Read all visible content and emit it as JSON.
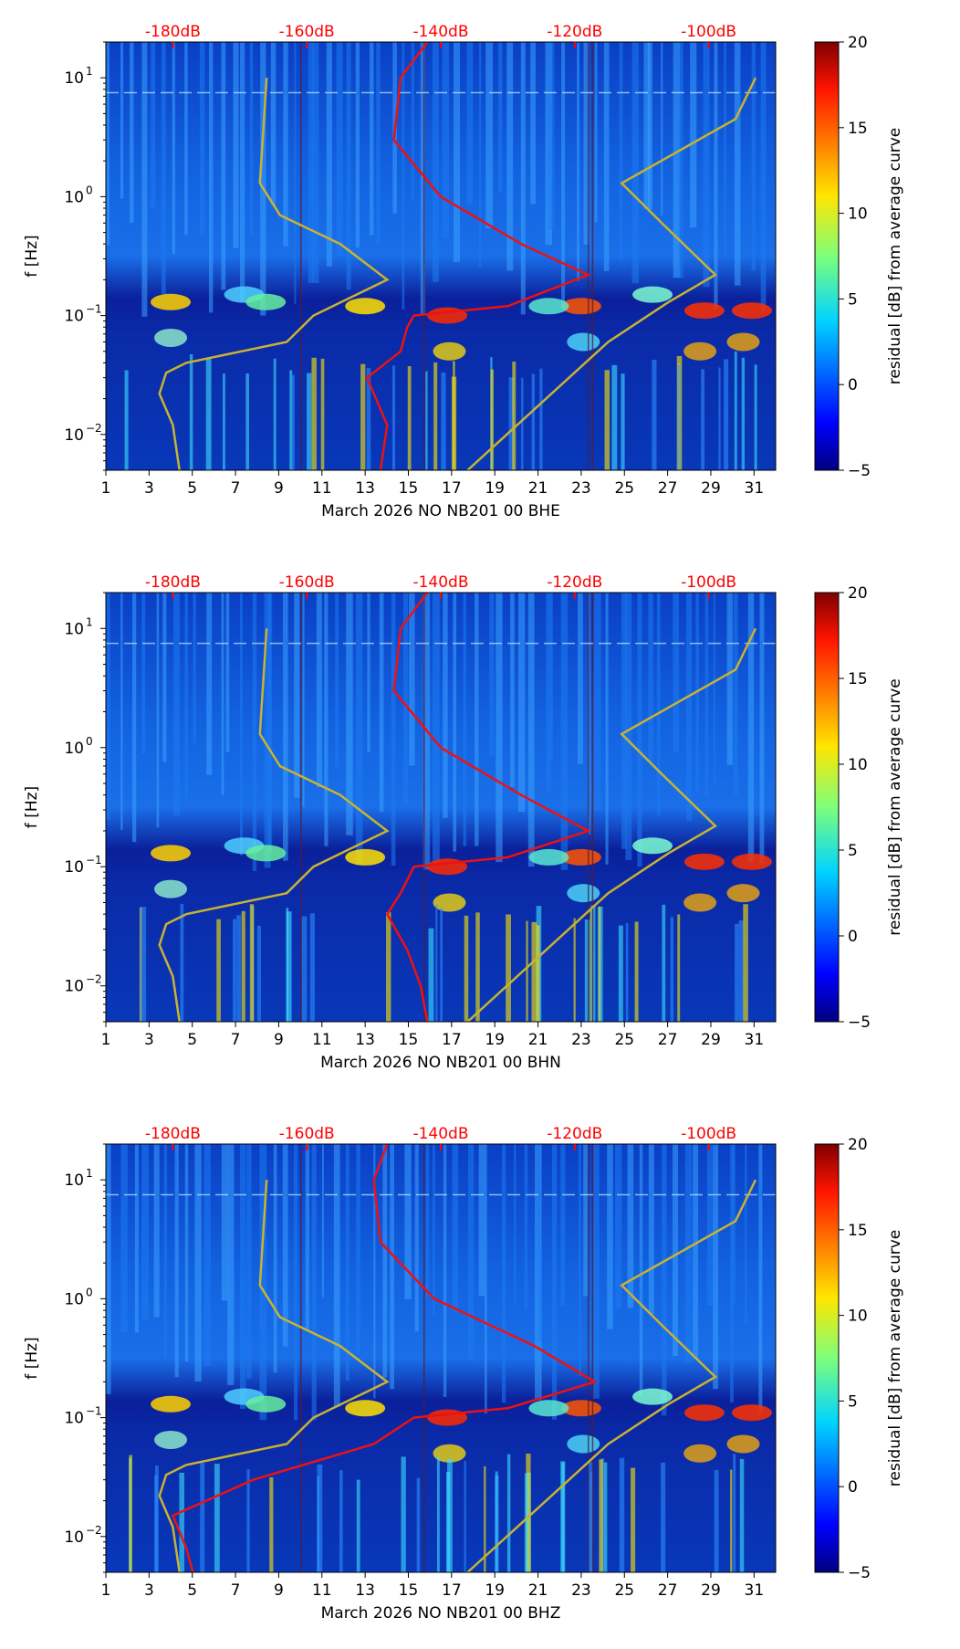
{
  "chart_data": [
    {
      "type": "heatmap",
      "xlabel": "March 2026 NO NB201 00 BHE",
      "ylabel": "f [Hz]",
      "x_ticks": [
        "1",
        "3",
        "5",
        "7",
        "9",
        "11",
        "13",
        "15",
        "17",
        "19",
        "21",
        "23",
        "25",
        "27",
        "29",
        "31"
      ],
      "y_ticks": [
        {
          "base": "10",
          "exp": "1"
        },
        {
          "base": "10",
          "exp": "0"
        },
        {
          "base": "10",
          "exp": "−1"
        },
        {
          "base": "10",
          "exp": "−2"
        }
      ],
      "top_ticks": [
        "-180dB",
        "-160dB",
        "-140dB",
        "-120dB",
        "-100dB"
      ],
      "colorbar": {
        "label": "residual [dB] from average curve",
        "ticks": [
          "−5",
          "0",
          "5",
          "10",
          "15",
          "20"
        ],
        "range": [
          -5,
          20
        ]
      },
      "xlim": [
        1,
        32
      ],
      "ylim_hz": [
        0.005,
        20
      ],
      "top_db_range": [
        -190,
        -90
      ],
      "red_curve_db": [
        [
          20,
          -142
        ],
        [
          10,
          -146
        ],
        [
          3,
          -147
        ],
        [
          1,
          -140
        ],
        [
          0.4,
          -128
        ],
        [
          0.22,
          -118
        ],
        [
          0.12,
          -130
        ],
        [
          0.1,
          -144
        ],
        [
          0.08,
          -145
        ],
        [
          0.05,
          -146
        ],
        [
          0.03,
          -151
        ],
        [
          0.012,
          -148
        ],
        [
          0.005,
          -149
        ]
      ],
      "yellow_curve_db": [
        [
          10,
          -166
        ],
        [
          1.3,
          -167
        ],
        [
          0.7,
          -164
        ],
        [
          0.4,
          -155
        ],
        [
          0.2,
          -148
        ],
        [
          0.1,
          -159
        ],
        [
          0.06,
          -163
        ],
        [
          0.04,
          -178
        ],
        [
          0.033,
          -181
        ],
        [
          0.022,
          -182
        ],
        [
          0.012,
          -180
        ],
        [
          0.005,
          -179
        ]
      ],
      "yellow_curve2_db": [
        [
          10,
          -93
        ],
        [
          4.5,
          -96
        ],
        [
          1.3,
          -113
        ],
        [
          0.6,
          -107
        ],
        [
          0.22,
          -99
        ],
        [
          0.13,
          -106
        ],
        [
          0.06,
          -115
        ],
        [
          0.005,
          -136
        ]
      ]
    },
    {
      "type": "heatmap",
      "xlabel": "March 2026 NO NB201 00 BHN",
      "ylabel": "f [Hz]",
      "x_ticks": [
        "1",
        "3",
        "5",
        "7",
        "9",
        "11",
        "13",
        "15",
        "17",
        "19",
        "21",
        "23",
        "25",
        "27",
        "29",
        "31"
      ],
      "y_ticks": [
        {
          "base": "10",
          "exp": "1"
        },
        {
          "base": "10",
          "exp": "0"
        },
        {
          "base": "10",
          "exp": "−1"
        },
        {
          "base": "10",
          "exp": "−2"
        }
      ],
      "top_ticks": [
        "-180dB",
        "-160dB",
        "-140dB",
        "-120dB",
        "-100dB"
      ],
      "colorbar": {
        "label": "residual [dB] from average curve",
        "ticks": [
          "−5",
          "0",
          "5",
          "10",
          "15",
          "20"
        ],
        "range": [
          -5,
          20
        ]
      },
      "xlim": [
        1,
        32
      ],
      "ylim_hz": [
        0.005,
        20
      ],
      "top_db_range": [
        -190,
        -90
      ],
      "red_curve_db": [
        [
          20,
          -142
        ],
        [
          10,
          -146
        ],
        [
          3,
          -147
        ],
        [
          1,
          -140
        ],
        [
          0.4,
          -128
        ],
        [
          0.2,
          -118
        ],
        [
          0.12,
          -130
        ],
        [
          0.1,
          -144
        ],
        [
          0.06,
          -146
        ],
        [
          0.04,
          -148
        ],
        [
          0.02,
          -145
        ],
        [
          0.01,
          -143
        ],
        [
          0.005,
          -142
        ]
      ],
      "yellow_curve_db": [
        [
          10,
          -166
        ],
        [
          1.3,
          -167
        ],
        [
          0.7,
          -164
        ],
        [
          0.4,
          -155
        ],
        [
          0.2,
          -148
        ],
        [
          0.1,
          -159
        ],
        [
          0.06,
          -163
        ],
        [
          0.04,
          -178
        ],
        [
          0.033,
          -181
        ],
        [
          0.022,
          -182
        ],
        [
          0.012,
          -180
        ],
        [
          0.005,
          -179
        ]
      ],
      "yellow_curve2_db": [
        [
          10,
          -93
        ],
        [
          4.5,
          -96
        ],
        [
          1.3,
          -113
        ],
        [
          0.6,
          -107
        ],
        [
          0.22,
          -99
        ],
        [
          0.13,
          -106
        ],
        [
          0.06,
          -115
        ],
        [
          0.005,
          -136
        ]
      ]
    },
    {
      "type": "heatmap",
      "xlabel": "March 2026 NO NB201 00 BHZ",
      "ylabel": "f [Hz]",
      "x_ticks": [
        "1",
        "3",
        "5",
        "7",
        "9",
        "11",
        "13",
        "15",
        "17",
        "19",
        "21",
        "23",
        "25",
        "27",
        "29",
        "31"
      ],
      "y_ticks": [
        {
          "base": "10",
          "exp": "1"
        },
        {
          "base": "10",
          "exp": "0"
        },
        {
          "base": "10",
          "exp": "−1"
        },
        {
          "base": "10",
          "exp": "−2"
        }
      ],
      "top_ticks": [
        "-180dB",
        "-160dB",
        "-140dB",
        "-120dB",
        "-100dB"
      ],
      "colorbar": {
        "label": "residual [dB] from average curve",
        "ticks": [
          "−5",
          "0",
          "5",
          "10",
          "15",
          "20"
        ],
        "range": [
          -5,
          20
        ]
      },
      "xlim": [
        1,
        32
      ],
      "ylim_hz": [
        0.005,
        20
      ],
      "top_db_range": [
        -190,
        -90
      ],
      "red_curve_db": [
        [
          20,
          -148
        ],
        [
          10,
          -150
        ],
        [
          3,
          -149
        ],
        [
          1,
          -141
        ],
        [
          0.4,
          -126
        ],
        [
          0.2,
          -117
        ],
        [
          0.12,
          -130
        ],
        [
          0.1,
          -144
        ],
        [
          0.06,
          -150
        ],
        [
          0.03,
          -168
        ],
        [
          0.015,
          -180
        ],
        [
          0.008,
          -178
        ],
        [
          0.005,
          -177
        ]
      ],
      "yellow_curve_db": [
        [
          10,
          -166
        ],
        [
          1.3,
          -167
        ],
        [
          0.7,
          -164
        ],
        [
          0.4,
          -155
        ],
        [
          0.2,
          -148
        ],
        [
          0.1,
          -159
        ],
        [
          0.06,
          -163
        ],
        [
          0.04,
          -178
        ],
        [
          0.033,
          -181
        ],
        [
          0.022,
          -182
        ],
        [
          0.012,
          -180
        ],
        [
          0.005,
          -179
        ]
      ],
      "yellow_curve2_db": [
        [
          10,
          -93
        ],
        [
          4.5,
          -96
        ],
        [
          1.3,
          -113
        ],
        [
          0.6,
          -107
        ],
        [
          0.22,
          -99
        ],
        [
          0.13,
          -106
        ],
        [
          0.06,
          -115
        ],
        [
          0.005,
          -136
        ]
      ]
    }
  ]
}
